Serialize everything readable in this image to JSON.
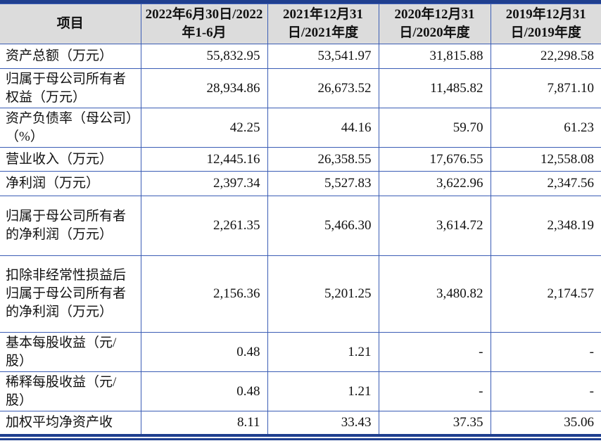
{
  "header": [
    "项目",
    "2022年6月30日/2022年1-6月",
    "2021年12月31日/2021年度",
    "2020年12月31日/2020年度",
    "2019年12月31日/2019年度"
  ],
  "rows": [
    {
      "label": "资产总额（万元）",
      "values": [
        "55,832.95",
        "53,541.97",
        "31,815.88",
        "22,298.58"
      ]
    },
    {
      "label": "归属于母公司所有者权益（万元）",
      "values": [
        "28,934.86",
        "26,673.52",
        "11,485.82",
        "7,871.10"
      ]
    },
    {
      "label": "资产负债率（母公司）（%）",
      "values": [
        "42.25",
        "44.16",
        "59.70",
        "61.23"
      ]
    },
    {
      "label": "营业收入（万元）",
      "values": [
        "12,445.16",
        "26,358.55",
        "17,676.55",
        "12,558.08"
      ]
    },
    {
      "label": "净利润（万元）",
      "values": [
        "2,397.34",
        "5,527.83",
        "3,622.96",
        "2,347.56"
      ]
    },
    {
      "label": "归属于母公司所有者的净利润（万元）",
      "values": [
        "2,261.35",
        "5,466.30",
        "3,614.72",
        "2,348.19"
      ]
    },
    {
      "label": "扣除非经常性损益后归属于母公司所有者的净利润（万元）",
      "values": [
        "2,156.36",
        "5,201.25",
        "3,480.82",
        "2,174.57"
      ]
    },
    {
      "label": "基本每股收益（元/股）",
      "values": [
        "0.48",
        "1.21",
        "-",
        "-"
      ]
    },
    {
      "label": "稀释每股收益（元/股）",
      "values": [
        "0.48",
        "1.21",
        "-",
        "-"
      ]
    },
    {
      "label": "加权平均净资产收",
      "values": [
        "8.11",
        "33.43",
        "37.35",
        "35.06"
      ]
    }
  ],
  "colors": {
    "border": "#3b5db5",
    "rule": "#1f3f8f",
    "header_bg": "#dcdcdc"
  }
}
